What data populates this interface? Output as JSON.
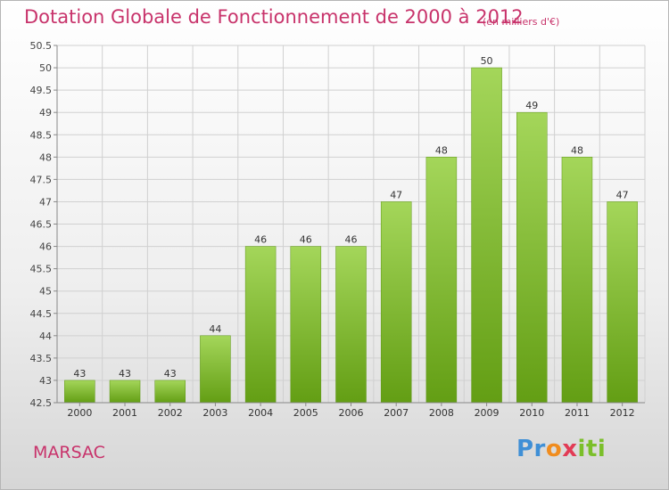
{
  "header": {
    "title": "Dotation Globale de Fonctionnement de 2000 à 2012",
    "subtitle": "(en milliers d'€)"
  },
  "footer": {
    "commune": "MARSAC",
    "logo_text": "Proxiti"
  },
  "colors": {
    "bar_light": "#a4d65a",
    "bar_dark": "#639e14",
    "title": "#c8336b",
    "grid": "#d0d0d0"
  },
  "chart_data": {
    "type": "bar",
    "categories": [
      "2000",
      "2001",
      "2002",
      "2003",
      "2004",
      "2005",
      "2006",
      "2007",
      "2008",
      "2009",
      "2010",
      "2011",
      "2012"
    ],
    "values": [
      43,
      43,
      43,
      44,
      46,
      46,
      46,
      47,
      48,
      50,
      49,
      48,
      47
    ],
    "data_labels": [
      "43",
      "43",
      "43",
      "44",
      "46",
      "46",
      "46",
      "47",
      "48",
      "50",
      "49",
      "48",
      "47"
    ],
    "title": "Dotation Globale de Fonctionnement de 2000 à 2012",
    "ylabel": "",
    "xlabel": "",
    "ylim": [
      42.5,
      50.5
    ],
    "yticks": [
      "42.5",
      "43",
      "43.5",
      "44",
      "44.5",
      "45",
      "45.5",
      "46",
      "46.5",
      "47",
      "47.5",
      "48",
      "48.5",
      "49",
      "49.5",
      "50",
      "50.5"
    ],
    "grid": true,
    "legend": "none"
  }
}
